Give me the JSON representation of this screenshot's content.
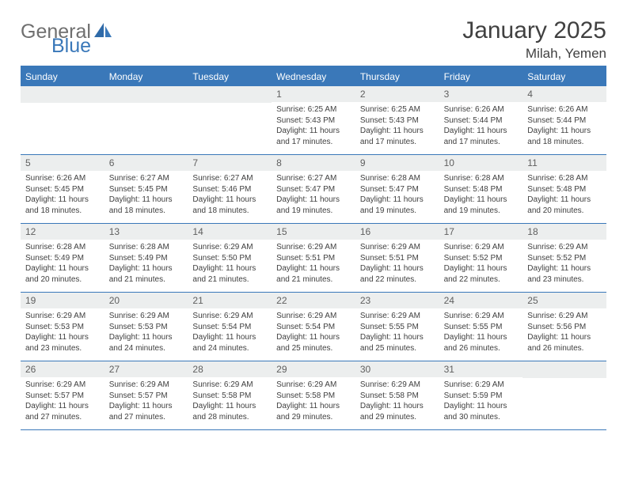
{
  "logo": {
    "general": "General",
    "blue": "Blue"
  },
  "title": "January 2025",
  "location": "Milah, Yemen",
  "colors": {
    "accent": "#3a78b9",
    "header_bg": "#3a78b9",
    "header_text": "#ffffff",
    "day_number_bg": "#eceeee",
    "day_number_text": "#5f5f5f",
    "body_text": "#3f3f3f",
    "title_text": "#404040",
    "logo_gray": "#6f6f6f",
    "background": "#ffffff"
  },
  "weekdays": [
    "Sunday",
    "Monday",
    "Tuesday",
    "Wednesday",
    "Thursday",
    "Friday",
    "Saturday"
  ],
  "weeks": [
    [
      null,
      null,
      null,
      {
        "n": "1",
        "sr": "6:25 AM",
        "ss": "5:43 PM",
        "dl": "11 hours and 17 minutes."
      },
      {
        "n": "2",
        "sr": "6:25 AM",
        "ss": "5:43 PM",
        "dl": "11 hours and 17 minutes."
      },
      {
        "n": "3",
        "sr": "6:26 AM",
        "ss": "5:44 PM",
        "dl": "11 hours and 17 minutes."
      },
      {
        "n": "4",
        "sr": "6:26 AM",
        "ss": "5:44 PM",
        "dl": "11 hours and 18 minutes."
      }
    ],
    [
      {
        "n": "5",
        "sr": "6:26 AM",
        "ss": "5:45 PM",
        "dl": "11 hours and 18 minutes."
      },
      {
        "n": "6",
        "sr": "6:27 AM",
        "ss": "5:45 PM",
        "dl": "11 hours and 18 minutes."
      },
      {
        "n": "7",
        "sr": "6:27 AM",
        "ss": "5:46 PM",
        "dl": "11 hours and 18 minutes."
      },
      {
        "n": "8",
        "sr": "6:27 AM",
        "ss": "5:47 PM",
        "dl": "11 hours and 19 minutes."
      },
      {
        "n": "9",
        "sr": "6:28 AM",
        "ss": "5:47 PM",
        "dl": "11 hours and 19 minutes."
      },
      {
        "n": "10",
        "sr": "6:28 AM",
        "ss": "5:48 PM",
        "dl": "11 hours and 19 minutes."
      },
      {
        "n": "11",
        "sr": "6:28 AM",
        "ss": "5:48 PM",
        "dl": "11 hours and 20 minutes."
      }
    ],
    [
      {
        "n": "12",
        "sr": "6:28 AM",
        "ss": "5:49 PM",
        "dl": "11 hours and 20 minutes."
      },
      {
        "n": "13",
        "sr": "6:28 AM",
        "ss": "5:49 PM",
        "dl": "11 hours and 21 minutes."
      },
      {
        "n": "14",
        "sr": "6:29 AM",
        "ss": "5:50 PM",
        "dl": "11 hours and 21 minutes."
      },
      {
        "n": "15",
        "sr": "6:29 AM",
        "ss": "5:51 PM",
        "dl": "11 hours and 21 minutes."
      },
      {
        "n": "16",
        "sr": "6:29 AM",
        "ss": "5:51 PM",
        "dl": "11 hours and 22 minutes."
      },
      {
        "n": "17",
        "sr": "6:29 AM",
        "ss": "5:52 PM",
        "dl": "11 hours and 22 minutes."
      },
      {
        "n": "18",
        "sr": "6:29 AM",
        "ss": "5:52 PM",
        "dl": "11 hours and 23 minutes."
      }
    ],
    [
      {
        "n": "19",
        "sr": "6:29 AM",
        "ss": "5:53 PM",
        "dl": "11 hours and 23 minutes."
      },
      {
        "n": "20",
        "sr": "6:29 AM",
        "ss": "5:53 PM",
        "dl": "11 hours and 24 minutes."
      },
      {
        "n": "21",
        "sr": "6:29 AM",
        "ss": "5:54 PM",
        "dl": "11 hours and 24 minutes."
      },
      {
        "n": "22",
        "sr": "6:29 AM",
        "ss": "5:54 PM",
        "dl": "11 hours and 25 minutes."
      },
      {
        "n": "23",
        "sr": "6:29 AM",
        "ss": "5:55 PM",
        "dl": "11 hours and 25 minutes."
      },
      {
        "n": "24",
        "sr": "6:29 AM",
        "ss": "5:55 PM",
        "dl": "11 hours and 26 minutes."
      },
      {
        "n": "25",
        "sr": "6:29 AM",
        "ss": "5:56 PM",
        "dl": "11 hours and 26 minutes."
      }
    ],
    [
      {
        "n": "26",
        "sr": "6:29 AM",
        "ss": "5:57 PM",
        "dl": "11 hours and 27 minutes."
      },
      {
        "n": "27",
        "sr": "6:29 AM",
        "ss": "5:57 PM",
        "dl": "11 hours and 27 minutes."
      },
      {
        "n": "28",
        "sr": "6:29 AM",
        "ss": "5:58 PM",
        "dl": "11 hours and 28 minutes."
      },
      {
        "n": "29",
        "sr": "6:29 AM",
        "ss": "5:58 PM",
        "dl": "11 hours and 29 minutes."
      },
      {
        "n": "30",
        "sr": "6:29 AM",
        "ss": "5:58 PM",
        "dl": "11 hours and 29 minutes."
      },
      {
        "n": "31",
        "sr": "6:29 AM",
        "ss": "5:59 PM",
        "dl": "11 hours and 30 minutes."
      },
      null
    ]
  ],
  "labels": {
    "sunrise": "Sunrise:",
    "sunset": "Sunset:",
    "daylight": "Daylight:"
  }
}
